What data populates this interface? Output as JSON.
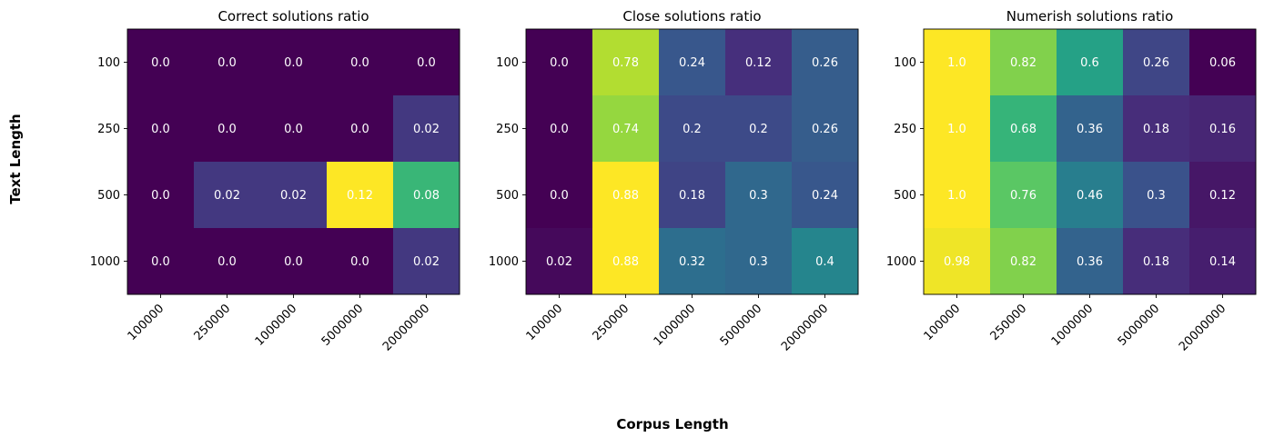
{
  "figure": {
    "ylabel": "Text Length",
    "xlabel": "Corpus Length"
  },
  "chart_data": [
    {
      "type": "heatmap",
      "title": "Correct solutions ratio",
      "x_categories": [
        "100000",
        "250000",
        "1000000",
        "5000000",
        "20000000"
      ],
      "y_categories": [
        "100",
        "250",
        "500",
        "1000"
      ],
      "values": [
        [
          0.0,
          0.0,
          0.0,
          0.0,
          0.0
        ],
        [
          0.0,
          0.0,
          0.0,
          0.0,
          0.02
        ],
        [
          0.0,
          0.02,
          0.02,
          0.12,
          0.08
        ],
        [
          0.0,
          0.0,
          0.0,
          0.0,
          0.02
        ]
      ],
      "labels": [
        [
          "0.0",
          "0.0",
          "0.0",
          "0.0",
          "0.0"
        ],
        [
          "0.0",
          "0.0",
          "0.0",
          "0.0",
          "0.02"
        ],
        [
          "0.0",
          "0.02",
          "0.02",
          "0.12",
          "0.08"
        ],
        [
          "0.0",
          "0.0",
          "0.0",
          "0.0",
          "0.02"
        ]
      ],
      "colormap": "viridis",
      "annotation_color": "#ffffff"
    },
    {
      "type": "heatmap",
      "title": "Close solutions ratio",
      "x_categories": [
        "100000",
        "250000",
        "1000000",
        "5000000",
        "20000000"
      ],
      "y_categories": [
        "100",
        "250",
        "500",
        "1000"
      ],
      "values": [
        [
          0.0,
          0.78,
          0.24,
          0.12,
          0.26
        ],
        [
          0.0,
          0.74,
          0.2,
          0.2,
          0.26
        ],
        [
          0.0,
          0.88,
          0.18,
          0.3,
          0.24
        ],
        [
          0.02,
          0.88,
          0.32,
          0.3,
          0.4
        ]
      ],
      "labels": [
        [
          "0.0",
          "0.78",
          "0.24",
          "0.12",
          "0.26"
        ],
        [
          "0.0",
          "0.74",
          "0.2",
          "0.2",
          "0.26"
        ],
        [
          "0.0",
          "0.88",
          "0.18",
          "0.3",
          "0.24"
        ],
        [
          "0.02",
          "0.88",
          "0.32",
          "0.3",
          "0.4"
        ]
      ],
      "colormap": "viridis",
      "annotation_color": "#ffffff"
    },
    {
      "type": "heatmap",
      "title": "Numerish solutions ratio",
      "x_categories": [
        "100000",
        "250000",
        "1000000",
        "5000000",
        "20000000"
      ],
      "y_categories": [
        "100",
        "250",
        "500",
        "1000"
      ],
      "values": [
        [
          1.0,
          0.82,
          0.6,
          0.26,
          0.06
        ],
        [
          1.0,
          0.68,
          0.36,
          0.18,
          0.16
        ],
        [
          1.0,
          0.76,
          0.46,
          0.3,
          0.12
        ],
        [
          0.98,
          0.82,
          0.36,
          0.18,
          0.14
        ]
      ],
      "labels": [
        [
          "1.0",
          "0.82",
          "0.6",
          "0.26",
          "0.06"
        ],
        [
          "1.0",
          "0.68",
          "0.36",
          "0.18",
          "0.16"
        ],
        [
          "1.0",
          "0.76",
          "0.46",
          "0.3",
          "0.12"
        ],
        [
          "0.98",
          "0.82",
          "0.36",
          "0.18",
          "0.14"
        ]
      ],
      "colormap": "viridis",
      "annotation_color": "#ffffff"
    }
  ]
}
